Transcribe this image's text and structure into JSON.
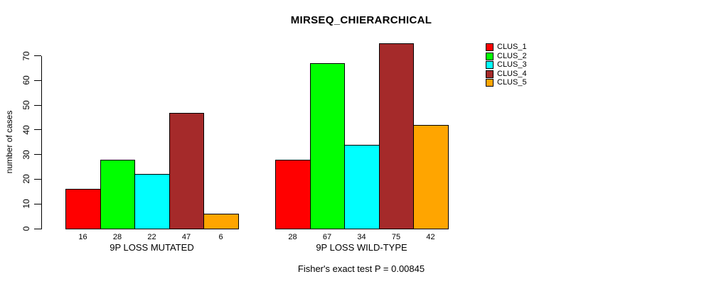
{
  "chart_data": {
    "type": "bar",
    "title": "MIRSEQ_CHIERARCHICAL",
    "ylabel": "number of cases",
    "ylim": [
      0,
      70
    ],
    "yticks": [
      0,
      10,
      20,
      30,
      40,
      50,
      60,
      70
    ],
    "grid": false,
    "legend_position": "right",
    "categories": [
      "9P LOSS MUTATED",
      "9P LOSS WILD-TYPE"
    ],
    "series": [
      {
        "name": "CLUS_1",
        "color": "#FF0000",
        "values": [
          16,
          28
        ]
      },
      {
        "name": "CLUS_2",
        "color": "#00FF00",
        "values": [
          28,
          67
        ]
      },
      {
        "name": "CLUS_3",
        "color": "#00FFFF",
        "values": [
          22,
          34
        ]
      },
      {
        "name": "CLUS_4",
        "color": "#A52A2A",
        "values": [
          47,
          75
        ]
      },
      {
        "name": "CLUS_5",
        "color": "#FFA500",
        "values": [
          6,
          42
        ]
      }
    ],
    "bar_value_labels": true,
    "bar_border_color": "#000000",
    "footer": "Fisher's exact test P = 0.00845"
  }
}
